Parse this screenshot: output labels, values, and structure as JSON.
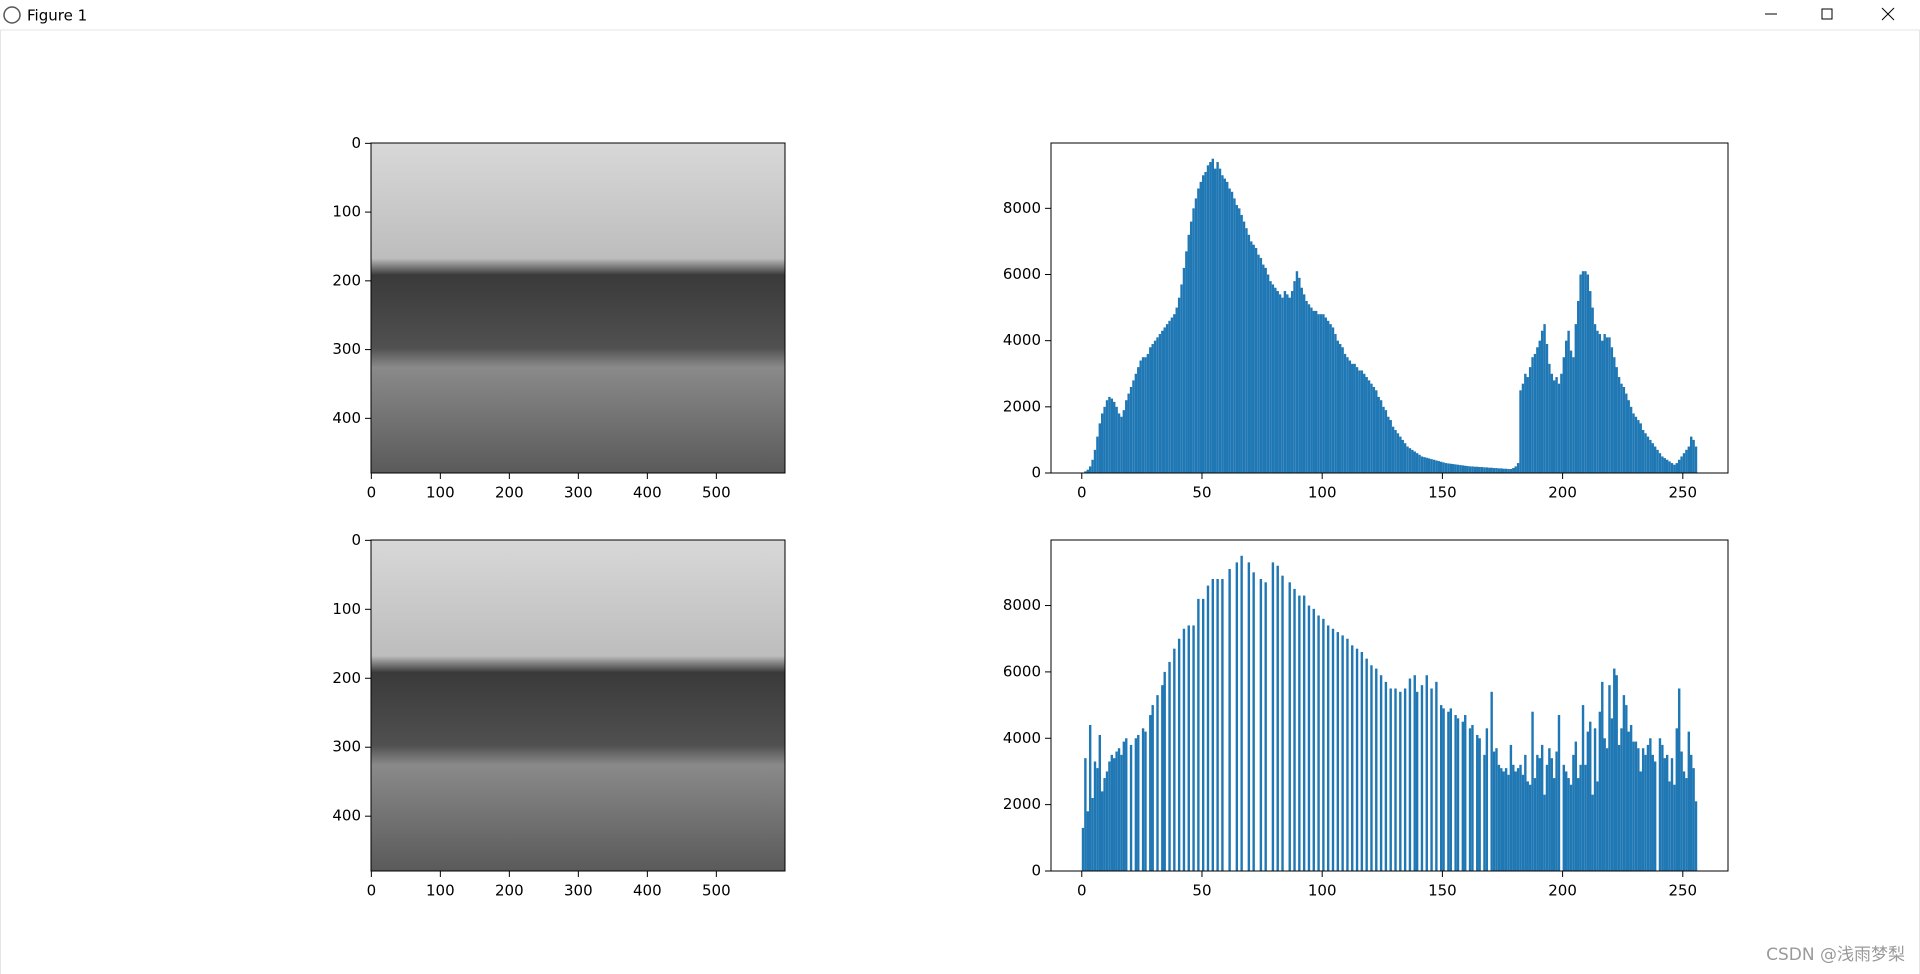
{
  "window": {
    "title": "Figure 1"
  },
  "watermark": "CSDN @浅雨梦梨",
  "chart_data": [
    {
      "type": "image",
      "xlim": [
        -0.5,
        599.5
      ],
      "ylim": [
        479.5,
        -0.5
      ],
      "xticks": [
        0,
        100,
        200,
        300,
        400,
        500
      ],
      "yticks": [
        0,
        100,
        200,
        300,
        400
      ]
    },
    {
      "type": "histogram",
      "color": "#1f77b4",
      "xlim": [
        -12.8,
        268.8
      ],
      "ylim": [
        0,
        9975
      ],
      "xticks": [
        0,
        50,
        100,
        150,
        200,
        250
      ],
      "yticks": [
        0,
        2000,
        4000,
        6000,
        8000
      ],
      "bins": [
        0,
        1,
        2,
        3,
        4,
        5,
        6,
        7,
        8,
        9,
        10,
        11,
        12,
        13,
        14,
        15,
        16,
        17,
        18,
        19,
        20,
        21,
        22,
        23,
        24,
        25,
        26,
        27,
        28,
        29,
        30,
        31,
        32,
        33,
        34,
        35,
        36,
        37,
        38,
        39,
        40,
        41,
        42,
        43,
        44,
        45,
        46,
        47,
        48,
        49,
        50,
        51,
        52,
        53,
        54,
        55,
        56,
        57,
        58,
        59,
        60,
        61,
        62,
        63,
        64,
        65,
        66,
        67,
        68,
        69,
        70,
        71,
        72,
        73,
        74,
        75,
        76,
        77,
        78,
        79,
        80,
        81,
        82,
        83,
        84,
        85,
        86,
        87,
        88,
        89,
        90,
        91,
        92,
        93,
        94,
        95,
        96,
        97,
        98,
        99,
        100,
        101,
        102,
        103,
        104,
        105,
        106,
        107,
        108,
        109,
        110,
        111,
        112,
        113,
        114,
        115,
        116,
        117,
        118,
        119,
        120,
        121,
        122,
        123,
        124,
        125,
        126,
        127,
        128,
        129,
        130,
        131,
        132,
        133,
        134,
        135,
        136,
        137,
        138,
        139,
        140,
        141,
        142,
        143,
        144,
        145,
        146,
        147,
        148,
        149,
        150,
        151,
        152,
        153,
        154,
        155,
        156,
        157,
        158,
        159,
        160,
        161,
        162,
        163,
        164,
        165,
        166,
        167,
        168,
        169,
        170,
        171,
        172,
        173,
        174,
        175,
        176,
        177,
        178,
        179,
        180,
        181,
        182,
        183,
        184,
        185,
        186,
        187,
        188,
        189,
        190,
        191,
        192,
        193,
        194,
        195,
        196,
        197,
        198,
        199,
        200,
        201,
        202,
        203,
        204,
        205,
        206,
        207,
        208,
        209,
        210,
        211,
        212,
        213,
        214,
        215,
        216,
        217,
        218,
        219,
        220,
        221,
        222,
        223,
        224,
        225,
        226,
        227,
        228,
        229,
        230,
        231,
        232,
        233,
        234,
        235,
        236,
        237,
        238,
        239,
        240,
        241,
        242,
        243,
        244,
        245,
        246,
        247,
        248,
        249,
        250,
        251,
        252,
        253,
        254,
        255,
        256
      ],
      "values": [
        0,
        50,
        100,
        200,
        400,
        700,
        1100,
        1500,
        1800,
        2000,
        2200,
        2300,
        2250,
        2150,
        2000,
        1800,
        1700,
        1900,
        2200,
        2400,
        2600,
        2800,
        3000,
        3200,
        3400,
        3500,
        3500,
        3600,
        3800,
        3900,
        4000,
        4100,
        4200,
        4300,
        4400,
        4500,
        4600,
        4700,
        4800,
        5000,
        5300,
        5700,
        6200,
        6700,
        7200,
        7600,
        8000,
        8300,
        8600,
        8800,
        9000,
        9100,
        9300,
        9400,
        9500,
        9200,
        9400,
        9200,
        9000,
        8900,
        8800,
        8600,
        8500,
        8300,
        8100,
        8000,
        7800,
        7600,
        7400,
        7200,
        7000,
        6900,
        6800,
        6600,
        6500,
        6300,
        6200,
        6000,
        5800,
        5700,
        5600,
        5500,
        5400,
        5300,
        5500,
        5400,
        5300,
        5500,
        5800,
        6100,
        5900,
        5600,
        5400,
        5200,
        5100,
        5000,
        4900,
        4900,
        4800,
        4800,
        4800,
        4700,
        4600,
        4500,
        4400,
        4200,
        4000,
        3900,
        3800,
        3600,
        3500,
        3400,
        3300,
        3300,
        3200,
        3100,
        3100,
        3000,
        2900,
        2800,
        2700,
        2600,
        2500,
        2300,
        2200,
        2000,
        1900,
        1700,
        1600,
        1400,
        1300,
        1200,
        1100,
        1000,
        900,
        800,
        750,
        700,
        650,
        600,
        550,
        500,
        480,
        460,
        440,
        420,
        400,
        380,
        360,
        340,
        320,
        300,
        290,
        280,
        270,
        260,
        250,
        240,
        230,
        220,
        210,
        200,
        200,
        190,
        190,
        180,
        180,
        170,
        170,
        160,
        160,
        150,
        150,
        140,
        140,
        130,
        130,
        120,
        120,
        150,
        200,
        300,
        2500,
        2700,
        3000,
        2900,
        3200,
        3500,
        3600,
        3800,
        4000,
        4300,
        4500,
        3900,
        3300,
        3000,
        2800,
        2900,
        2700,
        3000,
        3500,
        4000,
        4300,
        3700,
        3500,
        4500,
        5200,
        6000,
        6100,
        6100,
        6000,
        5500,
        5000,
        4500,
        4300,
        4200,
        4000,
        4200,
        4100,
        4100,
        3800,
        3500,
        3200,
        2900,
        2700,
        2600,
        2400,
        2200,
        2000,
        1800,
        1700,
        1600,
        1500,
        1300,
        1200,
        1100,
        1000,
        900,
        800,
        700,
        600,
        500,
        450,
        400,
        350,
        300,
        250,
        300,
        400,
        500,
        600,
        700,
        800,
        1100,
        1000,
        800
      ]
    },
    {
      "type": "image",
      "xlim": [
        -0.5,
        599.5
      ],
      "ylim": [
        479.5,
        -0.5
      ],
      "xticks": [
        0,
        100,
        200,
        300,
        400,
        500
      ],
      "yticks": [
        0,
        100,
        200,
        300,
        400
      ]
    },
    {
      "type": "histogram",
      "color": "#1f77b4",
      "xlim": [
        -12.8,
        268.8
      ],
      "ylim": [
        0,
        9975
      ],
      "xticks": [
        0,
        50,
        100,
        150,
        200,
        250
      ],
      "yticks": [
        0,
        2000,
        4000,
        6000,
        8000
      ],
      "bins": [
        0,
        1,
        2,
        3,
        4,
        5,
        6,
        7,
        8,
        9,
        10,
        11,
        12,
        13,
        14,
        15,
        16,
        17,
        18,
        19,
        20,
        21,
        22,
        23,
        24,
        25,
        26,
        27,
        28,
        29,
        30,
        31,
        32,
        33,
        34,
        35,
        36,
        37,
        38,
        39,
        40,
        41,
        42,
        43,
        44,
        45,
        46,
        47,
        48,
        49,
        50,
        51,
        52,
        53,
        54,
        55,
        56,
        57,
        58,
        59,
        60,
        61,
        62,
        63,
        64,
        65,
        66,
        67,
        68,
        69,
        70,
        71,
        72,
        73,
        74,
        75,
        76,
        77,
        78,
        79,
        80,
        81,
        82,
        83,
        84,
        85,
        86,
        87,
        88,
        89,
        90,
        91,
        92,
        93,
        94,
        95,
        96,
        97,
        98,
        99,
        100,
        101,
        102,
        103,
        104,
        105,
        106,
        107,
        108,
        109,
        110,
        111,
        112,
        113,
        114,
        115,
        116,
        117,
        118,
        119,
        120,
        121,
        122,
        123,
        124,
        125,
        126,
        127,
        128,
        129,
        130,
        131,
        132,
        133,
        134,
        135,
        136,
        137,
        138,
        139,
        140,
        141,
        142,
        143,
        144,
        145,
        146,
        147,
        148,
        149,
        150,
        151,
        152,
        153,
        154,
        155,
        156,
        157,
        158,
        159,
        160,
        161,
        162,
        163,
        164,
        165,
        166,
        167,
        168,
        169,
        170,
        171,
        172,
        173,
        174,
        175,
        176,
        177,
        178,
        179,
        180,
        181,
        182,
        183,
        184,
        185,
        186,
        187,
        188,
        189,
        190,
        191,
        192,
        193,
        194,
        195,
        196,
        197,
        198,
        199,
        200,
        201,
        202,
        203,
        204,
        205,
        206,
        207,
        208,
        209,
        210,
        211,
        212,
        213,
        214,
        215,
        216,
        217,
        218,
        219,
        220,
        221,
        222,
        223,
        224,
        225,
        226,
        227,
        228,
        229,
        230,
        231,
        232,
        233,
        234,
        235,
        236,
        237,
        238,
        239,
        240,
        241,
        242,
        243,
        244,
        245,
        246,
        247,
        248,
        249,
        250,
        251,
        252,
        253,
        254,
        255,
        256
      ],
      "values": [
        1300,
        3400,
        1800,
        4400,
        2200,
        3300,
        3100,
        4100,
        2400,
        2800,
        3000,
        3300,
        3500,
        3400,
        3600,
        3700,
        3500,
        3900,
        4000,
        0,
        3800,
        0,
        4000,
        4100,
        0,
        4300,
        4200,
        0,
        4700,
        5000,
        0,
        5300,
        0,
        5600,
        6000,
        0,
        6300,
        0,
        6700,
        0,
        7000,
        0,
        7300,
        0,
        7400,
        0,
        7400,
        0,
        8200,
        0,
        8200,
        0,
        8600,
        0,
        8800,
        0,
        8800,
        0,
        8800,
        0,
        0,
        9100,
        0,
        0,
        9300,
        0,
        9500,
        0,
        0,
        9300,
        0,
        9000,
        0,
        0,
        8800,
        0,
        8700,
        0,
        0,
        9300,
        0,
        9200,
        0,
        8900,
        0,
        0,
        8700,
        0,
        8500,
        0,
        8300,
        0,
        8300,
        0,
        8000,
        0,
        7900,
        0,
        7700,
        0,
        7600,
        0,
        7400,
        0,
        7300,
        0,
        7200,
        0,
        7100,
        0,
        7000,
        0,
        6800,
        0,
        6700,
        0,
        6600,
        0,
        6400,
        0,
        6200,
        0,
        6100,
        0,
        5900,
        0,
        5700,
        0,
        5500,
        0,
        5500,
        0,
        5400,
        0,
        5500,
        0,
        5800,
        0,
        5900,
        5400,
        0,
        5600,
        0,
        5900,
        0,
        5500,
        0,
        5700,
        0,
        5000,
        4900,
        0,
        4800,
        4900,
        0,
        4700,
        4600,
        0,
        4500,
        4700,
        0,
        4300,
        4400,
        0,
        4100,
        4000,
        0,
        3500,
        4300,
        0,
        5400,
        3600,
        3700,
        3200,
        3100,
        3000,
        3100,
        2900,
        3800,
        3200,
        3000,
        3100,
        3200,
        2900,
        3500,
        2700,
        2600,
        4800,
        2800,
        3500,
        3400,
        3800,
        2300,
        3200,
        3700,
        3400,
        2800,
        3600,
        4700,
        0,
        3200,
        3000,
        2800,
        2600,
        3500,
        3900,
        2800,
        3200,
        5000,
        3200,
        4200,
        4500,
        2300,
        4300,
        2700,
        4800,
        5700,
        4000,
        3700,
        5600,
        4600,
        6100,
        5900,
        3800,
        4300,
        5300,
        5000,
        4200,
        4400,
        3900,
        3900,
        3700,
        3000,
        3700,
        3500,
        3800,
        4000,
        3500,
        3300,
        0,
        4000,
        3800,
        3400,
        3500,
        2700,
        3400,
        2600,
        4300,
        5500,
        3600,
        3000,
        2800,
        4200,
        3500,
        3100,
        2100
      ]
    }
  ]
}
